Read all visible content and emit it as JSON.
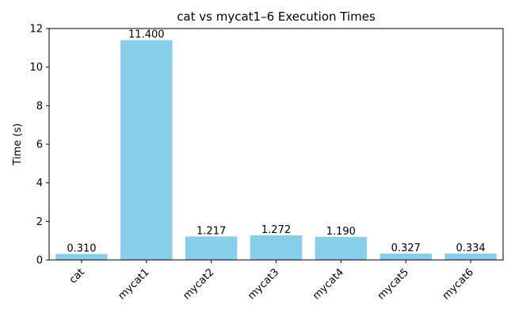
{
  "chart_data": {
    "type": "bar",
    "title": "cat vs mycat1–6 Execution Times",
    "xlabel": "",
    "ylabel": "Time (s)",
    "categories": [
      "cat",
      "mycat1",
      "mycat2",
      "mycat3",
      "mycat4",
      "mycat5",
      "mycat6"
    ],
    "values": [
      0.31,
      11.4,
      1.217,
      1.272,
      1.19,
      0.327,
      0.334
    ],
    "value_labels": [
      "0.310",
      "11.400",
      "1.217",
      "1.272",
      "1.190",
      "0.327",
      "0.334"
    ],
    "ylim": [
      0,
      12
    ],
    "yticks": [
      0,
      2,
      4,
      6,
      8,
      10,
      12
    ],
    "ytick_labels": [
      "0",
      "2",
      "4",
      "6",
      "8",
      "10",
      "12"
    ],
    "bar_color": "#87ceeb",
    "grid": false,
    "legend": "none",
    "xtick_rotation_deg": 45
  }
}
